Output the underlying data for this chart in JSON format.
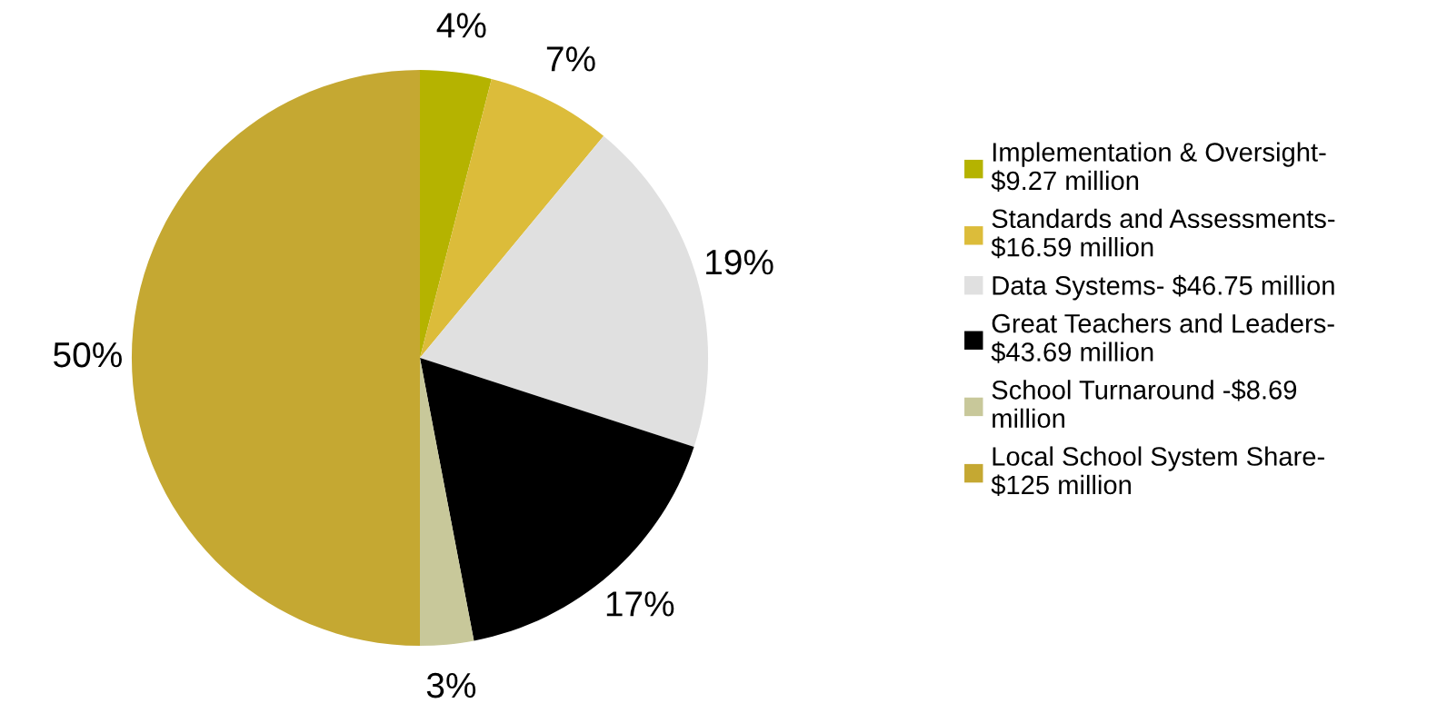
{
  "chart_data": {
    "type": "pie",
    "categories": [
      "Implementation & Oversight-\n$9.27 million",
      "Standards and Assessments-\n$16.59 million",
      "Data Systems- $46.75 million",
      "Great Teachers and Leaders-\n$43.69 million",
      "School Turnaround -$8.69\nmillion",
      "Local School System Share-\n$125 million"
    ],
    "values": [
      4,
      7,
      19,
      17,
      3,
      50
    ],
    "value_labels": [
      "4%",
      "7%",
      "19%",
      "17%",
      "3%",
      "50%"
    ],
    "colors": [
      "#b5b300",
      "#dcbc3a",
      "#e0e0e0",
      "#000000",
      "#c8c89a",
      "#c5a832"
    ],
    "legend": "right"
  }
}
